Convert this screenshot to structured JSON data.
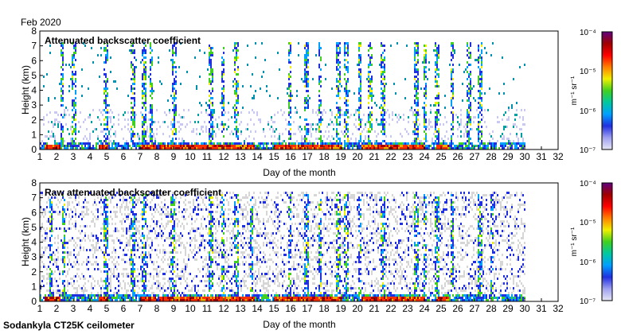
{
  "header": {
    "date_label": "Feb 2020"
  },
  "footer": {
    "instrument_label": "Sodankyla CT25K ceilometer"
  },
  "colorbar": {
    "unit_label": "m⁻¹ sr⁻¹",
    "ticks": [
      "10⁻⁴",
      "10⁻⁵",
      "10⁻⁶",
      "10⁻⁷"
    ],
    "scale": "log",
    "range": [
      1e-07,
      0.0001
    ],
    "colormap": [
      "#e6e6f5",
      "#9fa0f0",
      "#2030e0",
      "#00a0ff",
      "#00c8a0",
      "#40d020",
      "#f0f000",
      "#ff8000",
      "#ff0000",
      "#a00000",
      "#600080"
    ]
  },
  "chart_data": [
    {
      "type": "heatmap",
      "title": "Attenuated backscatter coefficient",
      "xlabel": "Day of the month",
      "ylabel": "Height (km)",
      "xlim": [
        1,
        32
      ],
      "ylim": [
        0,
        8
      ],
      "x_ticks": [
        1,
        2,
        3,
        4,
        5,
        6,
        7,
        8,
        9,
        10,
        11,
        12,
        13,
        14,
        15,
        16,
        17,
        18,
        19,
        20,
        21,
        22,
        23,
        24,
        25,
        26,
        27,
        28,
        29,
        30,
        31,
        32
      ],
      "y_ticks": [
        0,
        1,
        2,
        3,
        4,
        5,
        6,
        7,
        8
      ],
      "data_end_day": 30,
      "tall_signal_days": [
        2.3,
        3.0,
        4.9,
        6.5,
        7.2,
        7.6,
        9.0,
        11.2,
        11.9,
        12.7,
        15.9,
        16.9,
        17.7,
        18.8,
        19.3,
        20.1,
        20.7,
        21.5,
        23.5,
        24.0,
        24.7,
        25.6,
        26.6,
        27.3
      ],
      "near_surface_high_days": [
        [
          1.2,
          2.2
        ],
        [
          4.5,
          5.0
        ],
        [
          7.0,
          7.9
        ],
        [
          8.1,
          13.8
        ],
        [
          15.0,
          19.0
        ],
        [
          20.2,
          24.0
        ],
        [
          24.7,
          25.4
        ]
      ]
    },
    {
      "type": "heatmap",
      "title": "Raw attenuated backscatter coefficient",
      "xlabel": "Day of the month",
      "ylabel": "Height (km)",
      "xlim": [
        1,
        32
      ],
      "ylim": [
        0,
        8
      ],
      "x_ticks": [
        1,
        2,
        3,
        4,
        5,
        6,
        7,
        8,
        9,
        10,
        11,
        12,
        13,
        14,
        15,
        16,
        17,
        18,
        19,
        20,
        21,
        22,
        23,
        24,
        25,
        26,
        27,
        28,
        29,
        30,
        31,
        32
      ],
      "y_ticks": [
        0,
        1,
        2,
        3,
        4,
        5,
        6,
        7,
        8
      ],
      "data_end_day": 30,
      "tall_signal_days": [
        1.6,
        2.4,
        4.9,
        6.5,
        7.2,
        8.9,
        11.2,
        11.9,
        12.7,
        13.6,
        15.9,
        16.9,
        17.7,
        18.8,
        19.3,
        20.1,
        21.5,
        23.5,
        24.0,
        24.7,
        25.6,
        27.3,
        28.0
      ],
      "near_surface_high_days": [
        [
          1.2,
          2.2
        ],
        [
          4.5,
          5.0
        ],
        [
          7.0,
          7.9
        ],
        [
          8.1,
          13.8
        ],
        [
          15.0,
          19.0
        ],
        [
          20.2,
          24.0
        ],
        [
          24.7,
          25.4
        ]
      ]
    }
  ]
}
